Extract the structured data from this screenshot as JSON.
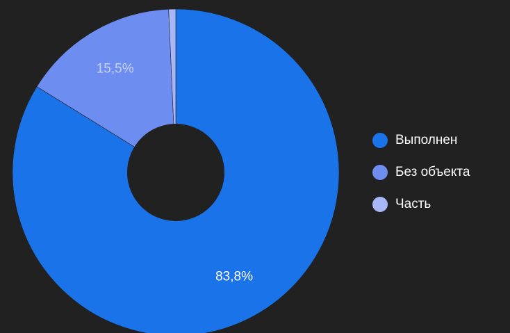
{
  "chart_data": {
    "type": "pie",
    "donut": true,
    "title": "",
    "legend_position": "right",
    "background": "#212121",
    "categories": [
      "Выполнен",
      "Без объекта",
      "Часть"
    ],
    "values": [
      83.8,
      15.5,
      0.7
    ],
    "labels": [
      "83,8%",
      "15,5%",
      ""
    ],
    "colors": [
      "#1a73e8",
      "#6d8ef0",
      "#a8b7f8"
    ],
    "label_colors": [
      "#ffffff",
      "#c9d3f5",
      "#ffffff"
    ]
  }
}
